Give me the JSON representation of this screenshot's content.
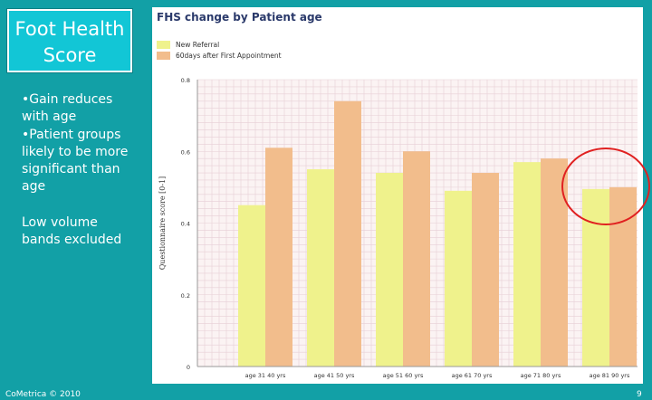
{
  "slide": {
    "title": "Foot Health Score",
    "bullets": [
      "•Gain reduces with age",
      "•Patient groups likely to be more significant than age"
    ],
    "note": "Low volume bands excluded",
    "footer_left": "CoMetrica © 2010",
    "page_number": "9"
  },
  "colors": {
    "new_referral": "#eff28c",
    "after_appointment": "#f2bd8c",
    "highlight": "#e02020"
  },
  "chart_data": {
    "type": "bar",
    "title": "FHS change by Patient age",
    "ylabel": "Questionnaire score [0-1]",
    "xlabel": "",
    "ylim": [
      0,
      0.8
    ],
    "yticks": [
      "0",
      "0.2",
      "0.4",
      "0.6",
      "0.8"
    ],
    "grid": true,
    "legend": "top-left",
    "categories": [
      "age 31 40 yrs",
      "age 41 50 yrs",
      "age 51 60 yrs",
      "age 61 70 yrs",
      "age 71 80 yrs",
      "age 81 90 yrs"
    ],
    "series": [
      {
        "name": "New Referral",
        "values": [
          0.45,
          0.55,
          0.54,
          0.49,
          0.57,
          0.495
        ]
      },
      {
        "name": "60days after First Appointment",
        "values": [
          0.61,
          0.74,
          0.6,
          0.54,
          0.58,
          0.5
        ]
      }
    ]
  }
}
